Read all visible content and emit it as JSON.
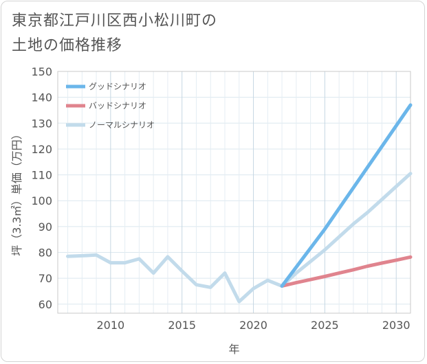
{
  "title": "東京都江戸川区西小松川町の\n土地の価格推移",
  "chart_data": {
    "type": "line",
    "xlabel": "年",
    "ylabel": "坪（3.3㎡）単価（万円）",
    "xlim": [
      2006.3,
      2031
    ],
    "ylim": [
      56.5,
      150
    ],
    "x_ticks": [
      2010,
      2015,
      2020,
      2025,
      2030
    ],
    "y_ticks": [
      60,
      70,
      80,
      90,
      100,
      110,
      120,
      130,
      140,
      150
    ],
    "grid": true,
    "legend_position": "top-left",
    "series": [
      {
        "name": "グッドシナリオ",
        "color": "#6bb6ea",
        "x": [
          2022,
          2025,
          2031
        ],
        "y": [
          67,
          89,
          137
        ]
      },
      {
        "name": "バッドシナリオ",
        "color": "#e0848e",
        "x": [
          2022,
          2023,
          2024,
          2025,
          2026,
          2027,
          2028,
          2029,
          2030,
          2031
        ],
        "y": [
          67,
          68.3,
          69.5,
          70.7,
          72,
          73.3,
          74.7,
          75.9,
          77,
          78.2
        ]
      },
      {
        "name": "ノーマルシナリオ",
        "color": "#c2dbeb",
        "x": [
          2007,
          2008,
          2009,
          2010,
          2011,
          2012,
          2013,
          2014,
          2015,
          2016,
          2017,
          2018,
          2019,
          2020,
          2021,
          2022,
          2023,
          2024,
          2025,
          2026,
          2027,
          2028,
          2029,
          2030,
          2031
        ],
        "y": [
          78.5,
          78.7,
          79,
          76,
          76,
          77.5,
          72,
          78.3,
          72.8,
          67.5,
          66.5,
          72,
          61,
          66,
          69.2,
          67,
          72,
          76.5,
          81,
          86,
          91,
          95.5,
          100.5,
          105.5,
          110.5
        ]
      }
    ]
  }
}
